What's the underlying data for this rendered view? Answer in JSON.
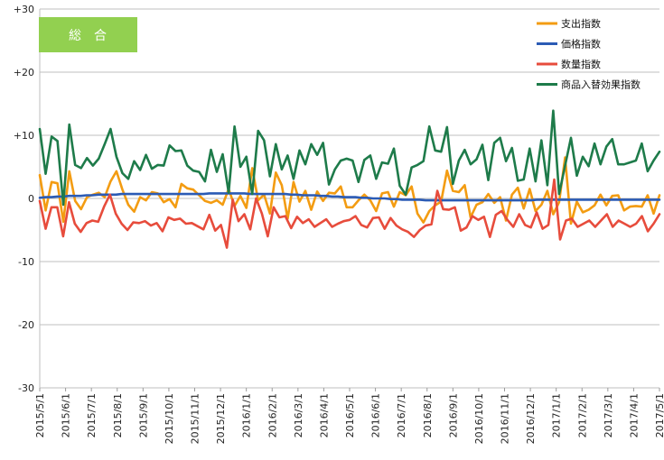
{
  "badge": {
    "label": "総　合",
    "color": "#92D050"
  },
  "chart_data": {
    "type": "line",
    "title": "",
    "xlabel": "",
    "ylabel": "",
    "ylim": [
      -30,
      30
    ],
    "yticks": [
      30,
      20,
      10,
      0,
      -10,
      -20,
      -30
    ],
    "ytick_labels": [
      "+30",
      "+20",
      "+10",
      "0",
      "-10",
      "-20",
      "-30"
    ],
    "xlim": [
      "2015-05-01",
      "2017-05-01"
    ],
    "xtick_labels": [
      "2015/5/1",
      "2015/6/1",
      "2015/7/1",
      "2015/8/1",
      "2015/9/1",
      "2015/10/1",
      "2015/11/1",
      "2015/12/1",
      "2016/1/1",
      "2016/2/1",
      "2016/3/1",
      "2016/4/1",
      "2016/5/1",
      "2016/6/1",
      "2016/7/1",
      "2016/8/1",
      "2016/9/1",
      "2016/10/1",
      "2016/11/1",
      "2016/12/1",
      "2017/1/1",
      "2017/2/1",
      "2017/3/1",
      "2017/4/1",
      "2017/5/1"
    ],
    "grid": {
      "horizontal": true,
      "vertical": false
    },
    "legend_position": "top-right",
    "series": [
      {
        "name": "支出指数",
        "color": "#F39C12",
        "values": [
          3.7,
          -1.9,
          2.6,
          2.4,
          -3.7,
          4.3,
          -0.4,
          -1.7,
          0.2,
          0.6,
          0.9,
          0.2,
          2.7,
          4.3,
          1.4,
          -1.0,
          -2.1,
          0.2,
          -0.3,
          1.0,
          0.8,
          -0.6,
          -0.1,
          -1.4,
          2.3,
          1.6,
          1.4,
          0.5,
          -0.4,
          -0.7,
          -0.3,
          -1.0,
          1.5,
          -1.2,
          0.4,
          -1.5,
          4.8,
          -0.3,
          0.6,
          -2.4,
          4.1,
          2.1,
          -3.2,
          2.6,
          -0.5,
          1.2,
          -1.8,
          1.1,
          -0.4,
          0.9,
          0.8,
          1.9,
          -1.4,
          -1.4,
          -0.3,
          0.6,
          -0.3,
          -2.0,
          0.8,
          1.0,
          -1.3,
          1.0,
          0.5,
          1.9,
          -2.4,
          -3.8,
          -2.0,
          -1.1,
          -0.5,
          4.4,
          1.2,
          1.0,
          2.1,
          -3.0,
          -1.0,
          -0.6,
          0.7,
          -0.7,
          0.2,
          -3.5,
          0.6,
          1.7,
          -1.6,
          1.5,
          -2.0,
          -1.0,
          1.2,
          -2.5,
          -0.6,
          6.5,
          -4.0,
          -0.5,
          -2.2,
          -1.8,
          -1.1,
          0.6,
          -1.1,
          0.4,
          0.5,
          -1.9,
          -1.3,
          -1.2,
          -1.3,
          0.5,
          -2.4,
          0.5
        ]
      },
      {
        "name": "価格指数",
        "color": "#2B5BB5",
        "values": [
          0.1,
          0.2,
          0.2,
          0.3,
          0.3,
          0.4,
          0.4,
          0.4,
          0.5,
          0.5,
          0.6,
          0.6,
          0.6,
          0.6,
          0.7,
          0.7,
          0.7,
          0.7,
          0.7,
          0.7,
          0.7,
          0.7,
          0.7,
          0.7,
          0.7,
          0.7,
          0.7,
          0.7,
          0.7,
          0.8,
          0.8,
          0.8,
          0.8,
          0.8,
          0.8,
          0.8,
          0.7,
          0.7,
          0.7,
          0.7,
          0.7,
          0.7,
          0.7,
          0.6,
          0.6,
          0.5,
          0.5,
          0.5,
          0.4,
          0.4,
          0.3,
          0.3,
          0.2,
          0.2,
          0.2,
          0.1,
          0.1,
          0.0,
          0.0,
          0.0,
          -0.1,
          -0.1,
          -0.2,
          -0.2,
          -0.2,
          -0.2,
          -0.3,
          -0.3,
          -0.3,
          -0.3,
          -0.3,
          -0.3,
          -0.3,
          -0.3,
          -0.3,
          -0.3,
          -0.3,
          -0.3,
          -0.3,
          -0.3,
          -0.3,
          -0.3,
          -0.3,
          -0.3,
          -0.3,
          -0.2,
          -0.2,
          -0.2,
          -0.2,
          -0.2,
          -0.2,
          -0.2,
          -0.2,
          -0.2,
          -0.2,
          -0.2,
          -0.2,
          -0.2,
          -0.2,
          -0.2,
          -0.2,
          -0.2,
          -0.2,
          -0.2,
          -0.2,
          -0.2,
          -0.2
        ]
      },
      {
        "name": "数量指数",
        "color": "#E74C3C",
        "values": [
          -0.4,
          -4.8,
          -1.4,
          -1.4,
          -6.0,
          -0.6,
          -4.0,
          -5.3,
          -3.9,
          -3.5,
          -3.7,
          -1.3,
          0.6,
          -2.4,
          -4.0,
          -5.0,
          -3.8,
          -3.9,
          -3.6,
          -4.3,
          -3.9,
          -5.2,
          -3.0,
          -3.4,
          -3.2,
          -4.0,
          -3.9,
          -4.4,
          -4.9,
          -2.6,
          -5.1,
          -4.2,
          -7.8,
          -0.2,
          -3.6,
          -2.5,
          -4.9,
          0.0,
          -2.4,
          -6.0,
          -1.4,
          -3.0,
          -2.8,
          -4.7,
          -2.9,
          -3.9,
          -3.3,
          -4.5,
          -3.9,
          -3.3,
          -4.5,
          -4.0,
          -3.6,
          -3.4,
          -2.8,
          -4.2,
          -4.6,
          -3.1,
          -3.0,
          -4.8,
          -3.1,
          -4.3,
          -4.9,
          -5.3,
          -6.1,
          -5.0,
          -4.3,
          -4.1,
          1.2,
          -1.7,
          -1.8,
          -1.4,
          -5.1,
          -4.6,
          -2.8,
          -3.4,
          -2.9,
          -6.1,
          -2.6,
          -2.0,
          -3.4,
          -4.5,
          -2.5,
          -4.2,
          -4.6,
          -2.2,
          -4.8,
          -4.2,
          3.0,
          -6.5,
          -3.5,
          -3.2,
          -4.5,
          -4.0,
          -3.5,
          -4.5,
          -3.5,
          -2.5,
          -4.5,
          -3.5,
          -4.0,
          -4.5,
          -4.0,
          -2.8,
          -5.2,
          -4.0,
          -2.5
        ]
      },
      {
        "name": "商品入替効果指数",
        "color": "#1E7B4A",
        "values": [
          11.0,
          3.9,
          9.8,
          9.1,
          -1.0,
          11.7,
          5.3,
          4.8,
          6.4,
          5.2,
          6.3,
          8.6,
          11.0,
          6.6,
          4.0,
          3.1,
          5.9,
          4.5,
          6.9,
          4.7,
          5.3,
          5.2,
          8.4,
          7.5,
          7.6,
          5.2,
          4.4,
          4.2,
          2.7,
          7.7,
          4.2,
          7.0,
          0.9,
          11.4,
          5.0,
          6.6,
          0.7,
          10.7,
          9.2,
          3.5,
          8.6,
          4.6,
          6.8,
          3.1,
          7.6,
          5.4,
          8.6,
          6.9,
          8.8,
          2.2,
          4.6,
          6.0,
          6.3,
          6.0,
          2.6,
          6.1,
          6.8,
          3.1,
          5.7,
          5.5,
          7.9,
          2.0,
          0.6,
          4.9,
          5.3,
          5.9,
          11.4,
          7.6,
          7.4,
          11.3,
          2.3,
          6.0,
          7.7,
          5.4,
          6.2,
          8.5,
          2.9,
          8.8,
          9.6,
          5.9,
          8.0,
          2.8,
          3.0,
          7.9,
          2.7,
          9.2,
          2.1,
          13.9,
          0.7,
          5.2,
          9.6,
          3.6,
          6.6,
          5.1,
          8.7,
          5.4,
          8.2,
          9.4,
          5.4,
          5.4,
          5.7,
          6.0,
          8.7,
          4.3,
          6.0,
          7.4
        ]
      }
    ]
  }
}
